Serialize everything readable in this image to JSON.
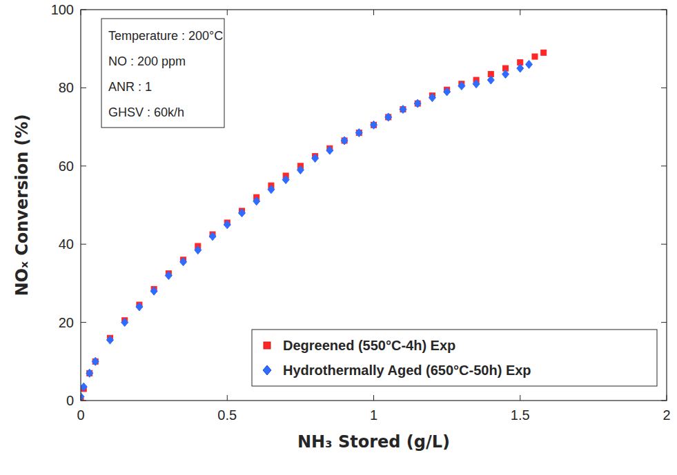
{
  "chart_data": {
    "type": "scatter",
    "x_label": "NH₃ Stored (g/L)",
    "y_label": "NOₓ Conversion (%)",
    "annotations": [
      "Temperature : 200°C",
      "NO : 200 ppm",
      "ANR : 1",
      "GHSV : 60k/h"
    ],
    "xlim": [
      0,
      2
    ],
    "ylim": [
      0,
      100
    ],
    "xticks": [
      0,
      0.5,
      1,
      1.5,
      2
    ],
    "yticks": [
      0,
      20,
      40,
      60,
      80,
      100
    ],
    "grid": false,
    "legend": "lower right",
    "series": [
      {
        "name": "Degreened (550°C-4h) Exp",
        "color": "#ff2626",
        "marker": "square",
        "x": [
          0,
          0.01,
          0.03,
          0.05,
          0.1,
          0.15,
          0.2,
          0.25,
          0.3,
          0.35,
          0.4,
          0.45,
          0.5,
          0.55,
          0.6,
          0.65,
          0.7,
          0.75,
          0.8,
          0.85,
          0.9,
          0.95,
          1.0,
          1.05,
          1.1,
          1.15,
          1.2,
          1.25,
          1.3,
          1.35,
          1.4,
          1.45,
          1.5,
          1.55,
          1.58
        ],
        "values": [
          0,
          3,
          7,
          10,
          16,
          20.5,
          24.5,
          28.5,
          32.5,
          36,
          39.5,
          42.5,
          45.5,
          48.5,
          52,
          55,
          57.5,
          60,
          62.5,
          64.5,
          66.5,
          68.5,
          70.5,
          72.5,
          74.5,
          76,
          78,
          79.5,
          81,
          82,
          83.5,
          85,
          86.5,
          88,
          89
        ]
      },
      {
        "name": "Hydrothermally Aged (650°C-50h) Exp",
        "color": "#2f6bff",
        "marker": "diamond",
        "x": [
          0,
          0.01,
          0.03,
          0.05,
          0.1,
          0.15,
          0.2,
          0.25,
          0.3,
          0.35,
          0.4,
          0.45,
          0.5,
          0.55,
          0.6,
          0.65,
          0.7,
          0.75,
          0.8,
          0.85,
          0.9,
          0.95,
          1.0,
          1.05,
          1.1,
          1.15,
          1.2,
          1.25,
          1.3,
          1.35,
          1.4,
          1.45,
          1.5,
          1.53
        ],
        "values": [
          1,
          3.5,
          7,
          10,
          15.5,
          20,
          24,
          28,
          32,
          35.5,
          38.5,
          42,
          45,
          48,
          51,
          54,
          56.5,
          59,
          62,
          64,
          66.5,
          68.5,
          70.5,
          72.5,
          74.5,
          76,
          77.5,
          79,
          80.5,
          81,
          82,
          83.5,
          85,
          86
        ]
      }
    ]
  }
}
